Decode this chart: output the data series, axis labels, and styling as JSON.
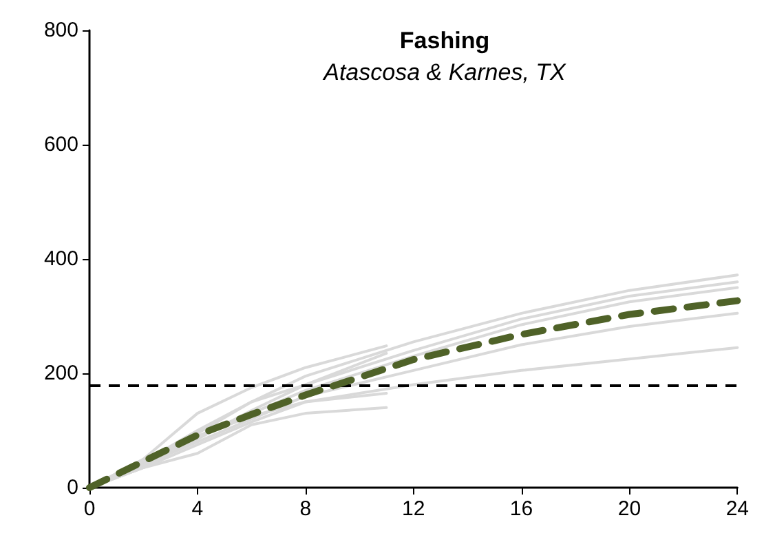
{
  "chart_data": {
    "type": "line",
    "title": "Fashing",
    "subtitle": "Atascosa & Karnes, TX",
    "xlim": [
      0,
      24
    ],
    "xticks": [
      0,
      4,
      8,
      12,
      16,
      20,
      24
    ],
    "ylim": [
      0,
      800
    ],
    "yticks": [
      0,
      200,
      400,
      600,
      800
    ],
    "grid": false,
    "marker": "none",
    "line_style": "solid",
    "series": [
      {
        "color": "#d9d9d9",
        "x": [
          0,
          2,
          4,
          6,
          8,
          12,
          16,
          20,
          24
        ],
        "values": [
          0,
          40,
          95,
          150,
          195,
          255,
          305,
          345,
          372
        ]
      },
      {
        "color": "#d9d9d9",
        "x": [
          0,
          2,
          4,
          6,
          8,
          12,
          16,
          20,
          24
        ],
        "values": [
          0,
          35,
          85,
          135,
          180,
          240,
          295,
          335,
          360
        ]
      },
      {
        "color": "#d9d9d9",
        "x": [
          0,
          2,
          4,
          6,
          8,
          12,
          16,
          20,
          24
        ],
        "values": [
          0,
          45,
          90,
          130,
          170,
          230,
          285,
          325,
          350
        ]
      },
      {
        "color": "#d9d9d9",
        "x": [
          0,
          2,
          4,
          6,
          8,
          12,
          16,
          20,
          24
        ],
        "values": [
          0,
          40,
          80,
          120,
          160,
          205,
          250,
          282,
          305
        ]
      },
      {
        "color": "#d9d9d9",
        "x": [
          0,
          2,
          4,
          6,
          8,
          12,
          16,
          20,
          24
        ],
        "values": [
          0,
          35,
          75,
          115,
          150,
          180,
          205,
          225,
          245
        ]
      },
      {
        "color": "#d9d9d9",
        "x": [
          0,
          2,
          4,
          6,
          8,
          11
        ],
        "values": [
          0,
          50,
          130,
          175,
          210,
          248
        ]
      },
      {
        "color": "#d9d9d9",
        "x": [
          0,
          2,
          4,
          6,
          8,
          11
        ],
        "values": [
          0,
          45,
          100,
          150,
          180,
          235
        ]
      },
      {
        "color": "#d9d9d9",
        "x": [
          0,
          2,
          4,
          6,
          8,
          11
        ],
        "values": [
          0,
          40,
          90,
          125,
          150,
          165
        ]
      },
      {
        "color": "#d9d9d9",
        "x": [
          0,
          2,
          4,
          6,
          8,
          11
        ],
        "values": [
          0,
          35,
          60,
          110,
          130,
          140
        ]
      },
      {
        "color": "#4f6228",
        "line_style": "dashed",
        "x": [
          0,
          2,
          4,
          6,
          8,
          10,
          12,
          16,
          20,
          24
        ],
        "values": [
          0,
          46,
          92,
          128,
          162,
          193,
          224,
          268,
          303,
          327
        ]
      }
    ],
    "ref_lines": [
      {
        "axis": "y",
        "value": 180,
        "color": "#000000",
        "line_style": "dashed"
      }
    ]
  }
}
